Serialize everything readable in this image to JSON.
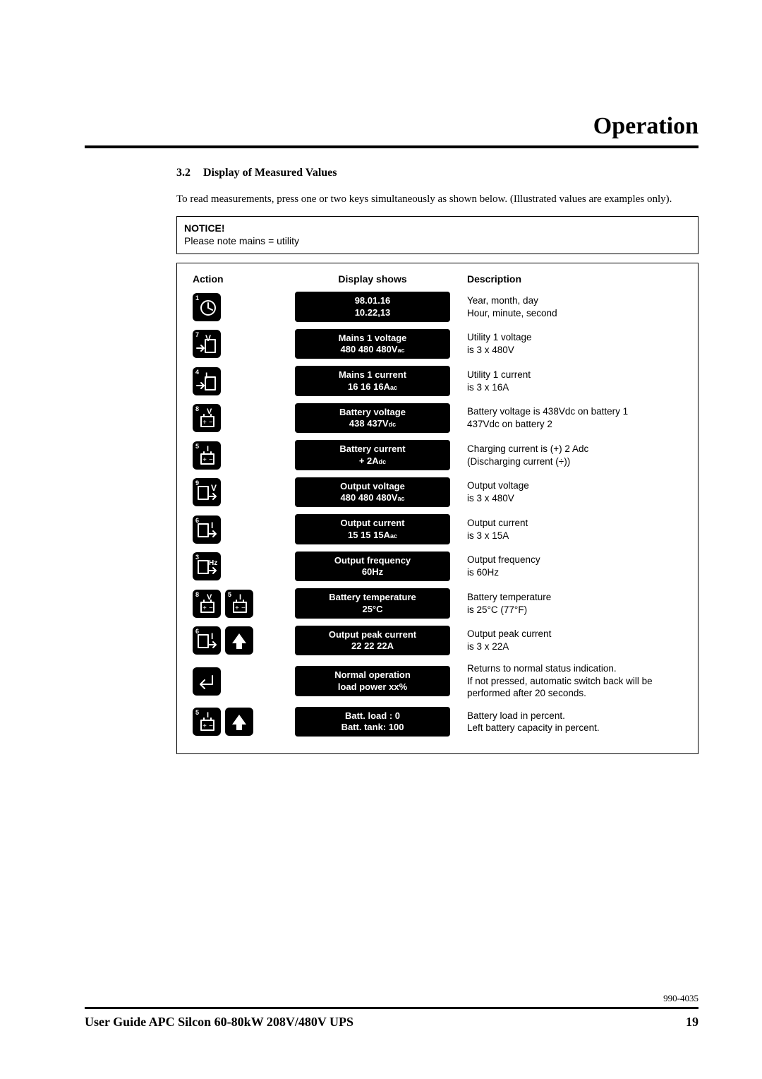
{
  "header": {
    "title": "Operation"
  },
  "section": {
    "num": "3.2",
    "heading": "Display of Measured Values",
    "intro": "To read measurements, press one or two keys simultaneously as shown below. (Illustrated values are examples only)."
  },
  "notice": {
    "label": "NOTICE!",
    "text": "Please note mains = utility"
  },
  "columns": {
    "action": "Action",
    "display": "Display shows",
    "desc": "Description"
  },
  "rows": [
    {
      "keys": [
        {
          "corner": "1",
          "icon": "clock"
        }
      ],
      "line1": "98.01.16",
      "line2": "10.22,13",
      "desc1": "Year, month, day",
      "desc2": "Hour, minute, second"
    },
    {
      "keys": [
        {
          "corner": "7",
          "icon": "inV"
        }
      ],
      "line1": "Mains 1 voltage",
      "line2_html": "480 480 480V<span class=\"sub\">ac</span>",
      "desc1": "Utility 1 voltage",
      "desc2": "is 3 x 480V"
    },
    {
      "keys": [
        {
          "corner": "4",
          "icon": "inI"
        }
      ],
      "line1": "Mains 1 current",
      "line2_html": "16 16 16A<span class=\"sub\">ac</span>",
      "desc1": "Utility 1 current",
      "desc2": "is 3 x 16A"
    },
    {
      "keys": [
        {
          "corner": "8",
          "icon": "battV"
        }
      ],
      "line1": "Battery voltage",
      "line2_html": "438 437V<span class=\"sub\">dc</span>",
      "desc1": "Battery voltage is 438Vdc on battery 1",
      "desc2": "437Vdc on battery 2"
    },
    {
      "keys": [
        {
          "corner": "5",
          "icon": "battI"
        }
      ],
      "line1": "Battery current",
      "line2_html": "+ 2A<span class=\"sub\">dc</span>",
      "desc1": "Charging current is (+) 2 Adc",
      "desc2": "(Discharging current (÷))"
    },
    {
      "keys": [
        {
          "corner": "9",
          "icon": "outV"
        }
      ],
      "line1": "Output voltage",
      "line2_html": "480 480 480V<span class=\"sub\">ac</span>",
      "desc1": "Output voltage",
      "desc2": "is 3 x 480V"
    },
    {
      "keys": [
        {
          "corner": "6",
          "icon": "outI"
        }
      ],
      "line1": "Output current",
      "line2_html": "15 15 15A<span class=\"sub\">ac</span>",
      "desc1": "Output current",
      "desc2": "is 3 x 15A"
    },
    {
      "keys": [
        {
          "corner": "3",
          "icon": "outHz"
        }
      ],
      "line1": "Output frequency",
      "line2": "60Hz",
      "desc1": "Output frequency",
      "desc2": "is 60Hz"
    },
    {
      "keys": [
        {
          "corner": "8",
          "icon": "battV"
        },
        {
          "corner": "5",
          "icon": "battI"
        }
      ],
      "line1": "Battery temperature",
      "line2": "25°C",
      "desc1": "Battery temperature",
      "desc2": "is 25°C (77°F)"
    },
    {
      "keys": [
        {
          "corner": "6",
          "icon": "outI"
        },
        {
          "corner": "",
          "icon": "up"
        }
      ],
      "line1": "Output peak current",
      "line2": "22 22 22A",
      "desc1": "Output peak current",
      "desc2": "is 3 x 22A"
    },
    {
      "keys": [
        {
          "corner": "",
          "icon": "enter"
        }
      ],
      "line1": "Normal operation",
      "line2": "load power xx%",
      "desc1": "Returns to normal status indication.",
      "desc2": "If not pressed, automatic switch back will be performed after 20 seconds."
    },
    {
      "keys": [
        {
          "corner": "5",
          "icon": "battI"
        },
        {
          "corner": "",
          "icon": "up"
        }
      ],
      "line1": "Batt. load : 0",
      "line2": "Batt. tank:  100",
      "desc1": "Battery load in percent.",
      "desc2": "Left battery capacity in percent."
    }
  ],
  "footer": {
    "doc": "990-4035",
    "title": "User Guide APC Silcon 60-80kW 208V/480V UPS",
    "page": "19"
  },
  "colors": {
    "black": "#000000",
    "white": "#ffffff"
  }
}
